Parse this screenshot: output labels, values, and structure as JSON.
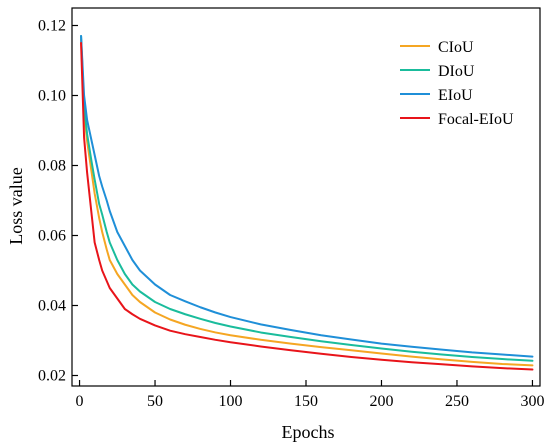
{
  "chart_data": {
    "type": "line",
    "title": "",
    "xlabel": "Epochs",
    "ylabel": "Loss value",
    "xlim": [
      -5,
      305
    ],
    "ylim": [
      0.017,
      0.125
    ],
    "xticks": [
      0,
      50,
      100,
      150,
      200,
      250,
      300
    ],
    "yticks": [
      0.02,
      0.04,
      0.06,
      0.08,
      0.1,
      0.12
    ],
    "ytick_labels": [
      "0.02",
      "0.04",
      "0.06",
      "0.08",
      "0.10",
      "0.12"
    ],
    "grid": false,
    "legend_position": "top-right",
    "series": [
      {
        "name": "CIoU",
        "color": "#f5a623",
        "x": [
          1,
          3,
          5,
          8,
          10,
          13,
          15,
          18,
          20,
          25,
          30,
          35,
          40,
          50,
          60,
          70,
          80,
          90,
          100,
          120,
          140,
          160,
          180,
          200,
          220,
          240,
          260,
          280,
          300
        ],
        "y": [
          0.116,
          0.095,
          0.087,
          0.078,
          0.072,
          0.065,
          0.061,
          0.056,
          0.053,
          0.049,
          0.046,
          0.043,
          0.041,
          0.038,
          0.036,
          0.0345,
          0.0333,
          0.0323,
          0.0315,
          0.0302,
          0.0291,
          0.0281,
          0.0272,
          0.0263,
          0.0254,
          0.0246,
          0.0239,
          0.0233,
          0.0229
        ]
      },
      {
        "name": "DIoU",
        "color": "#1abc9c",
        "x": [
          1,
          3,
          5,
          8,
          10,
          13,
          15,
          18,
          20,
          25,
          30,
          35,
          40,
          50,
          60,
          70,
          80,
          90,
          100,
          120,
          140,
          160,
          180,
          200,
          220,
          240,
          260,
          280,
          300
        ],
        "y": [
          0.117,
          0.097,
          0.089,
          0.081,
          0.076,
          0.069,
          0.066,
          0.061,
          0.058,
          0.053,
          0.049,
          0.046,
          0.044,
          0.041,
          0.039,
          0.0375,
          0.0362,
          0.035,
          0.034,
          0.0323,
          0.031,
          0.0298,
          0.0287,
          0.0277,
          0.0268,
          0.026,
          0.0253,
          0.0247,
          0.0242
        ]
      },
      {
        "name": "EIoU",
        "color": "#1f8fd8",
        "x": [
          1,
          3,
          5,
          8,
          10,
          13,
          15,
          18,
          20,
          25,
          30,
          35,
          40,
          50,
          60,
          70,
          80,
          90,
          100,
          120,
          140,
          160,
          180,
          200,
          220,
          240,
          260,
          280,
          300
        ],
        "y": [
          0.117,
          0.1,
          0.093,
          0.087,
          0.083,
          0.077,
          0.074,
          0.07,
          0.067,
          0.061,
          0.057,
          0.053,
          0.05,
          0.046,
          0.043,
          0.0412,
          0.0395,
          0.038,
          0.0367,
          0.0346,
          0.033,
          0.0315,
          0.0303,
          0.0291,
          0.0282,
          0.0274,
          0.0266,
          0.026,
          0.0254
        ]
      },
      {
        "name": "Focal-EIoU",
        "color": "#e8141a",
        "x": [
          1,
          3,
          5,
          8,
          10,
          13,
          15,
          18,
          20,
          25,
          30,
          35,
          40,
          50,
          60,
          70,
          80,
          90,
          100,
          120,
          140,
          160,
          180,
          200,
          220,
          240,
          260,
          280,
          300
        ],
        "y": [
          0.115,
          0.088,
          0.078,
          0.066,
          0.058,
          0.053,
          0.05,
          0.047,
          0.045,
          0.042,
          0.039,
          0.0375,
          0.0362,
          0.0343,
          0.0328,
          0.0318,
          0.031,
          0.0302,
          0.0295,
          0.0283,
          0.0272,
          0.0262,
          0.0253,
          0.0245,
          0.0238,
          0.0232,
          0.0226,
          0.0221,
          0.0217
        ]
      }
    ]
  }
}
